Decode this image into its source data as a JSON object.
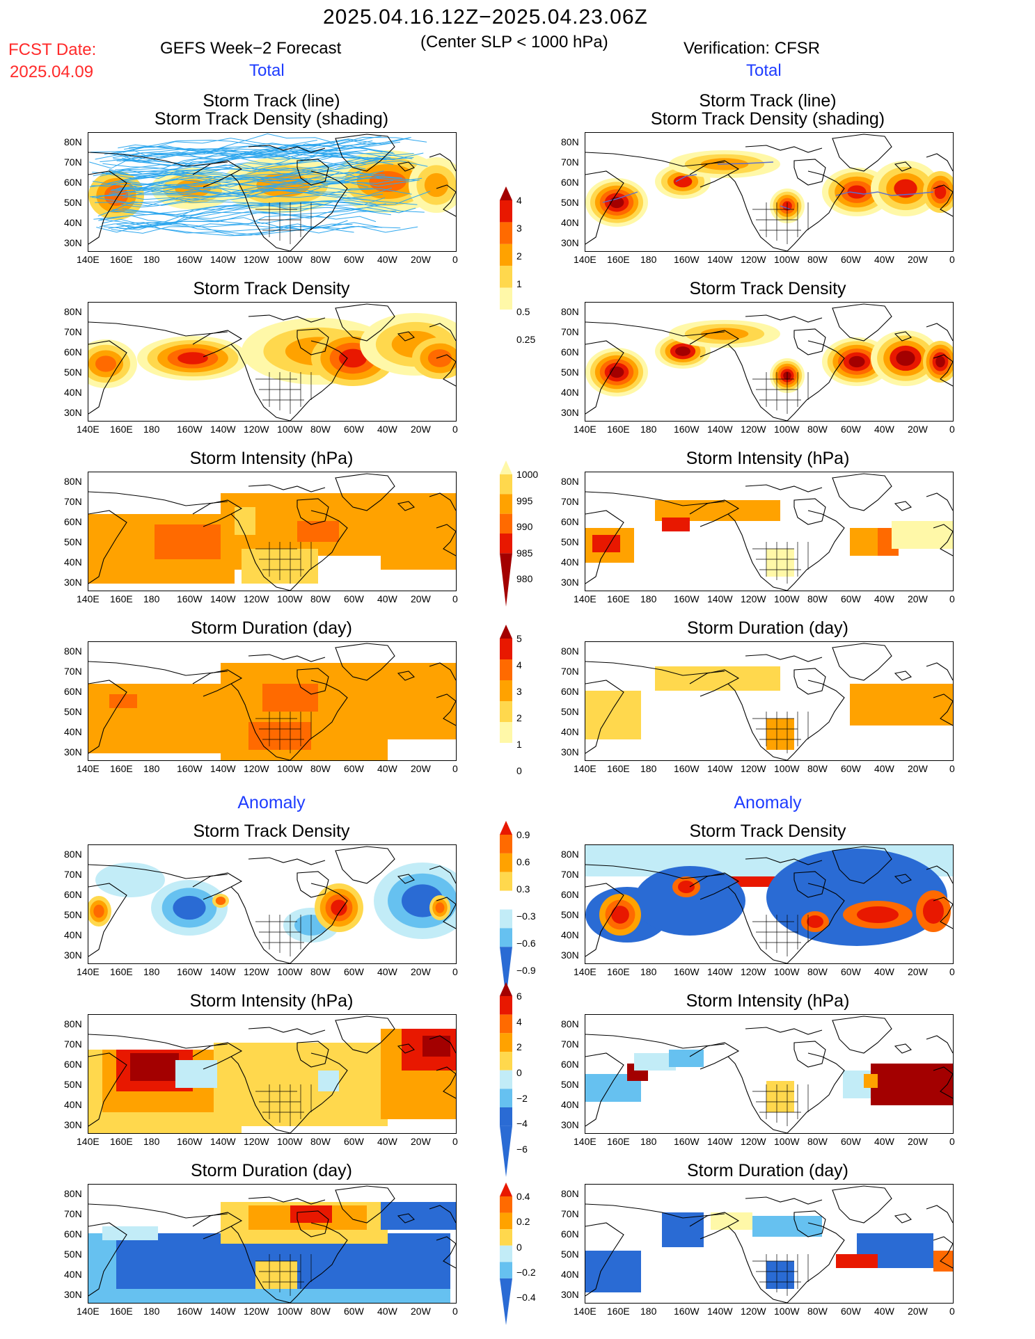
{
  "header": {
    "date_range": "2025.04.16.12Z−2025.04.23.06Z",
    "condition": "(Center SLP < 1000 hPa)",
    "fcst_label": "FCST Date:",
    "fcst_date": "2025.04.09",
    "left_title": "GEFS Week−2 Forecast",
    "right_title": "Verification: CFSR",
    "total_label": "Total"
  },
  "sections": {
    "anomaly_label": "Anomaly"
  },
  "panels": {
    "track_line": "Storm Track (line)",
    "track_shading": "Storm Track Density (shading)",
    "density": "Storm Track Density",
    "intensity": "Storm Intensity (hPa)",
    "duration": "Storm Duration (day)"
  },
  "axes": {
    "lat_labels": [
      "80N",
      "70N",
      "60N",
      "50N",
      "40N",
      "30N"
    ],
    "lon_labels": [
      "140E",
      "160E",
      "180",
      "160W",
      "140W",
      "120W",
      "100W",
      "80W",
      "60W",
      "40W",
      "20W",
      "0"
    ]
  },
  "colorbars": {
    "total_density": [
      "4",
      "3",
      "2",
      "1",
      "0.5",
      "0.25"
    ],
    "total_intensity": [
      "1000",
      "995",
      "990",
      "985",
      "980"
    ],
    "total_duration": [
      "5",
      "4",
      "3",
      "2",
      "1",
      "0"
    ],
    "anom_density": [
      "0.9",
      "0.6",
      "0.3",
      "−0.3",
      "−0.6",
      "−0.9"
    ],
    "anom_intensity": [
      "6",
      "4",
      "2",
      "0",
      "−2",
      "−4",
      "−6"
    ],
    "anom_duration": [
      "0.4",
      "0.2",
      "0",
      "−0.2",
      "−0.4"
    ]
  },
  "colors": {
    "warm": [
      "#fff8a8",
      "#ffd84d",
      "#ffa200",
      "#ff6a00",
      "#e81800",
      "#a30000"
    ],
    "cool": [
      "#c2ecf7",
      "#66c1f0",
      "#2a6bd4"
    ],
    "track_line": "#2ea7ee",
    "title_red": "#ff2a2a",
    "title_blue": "#1e3cff"
  }
}
